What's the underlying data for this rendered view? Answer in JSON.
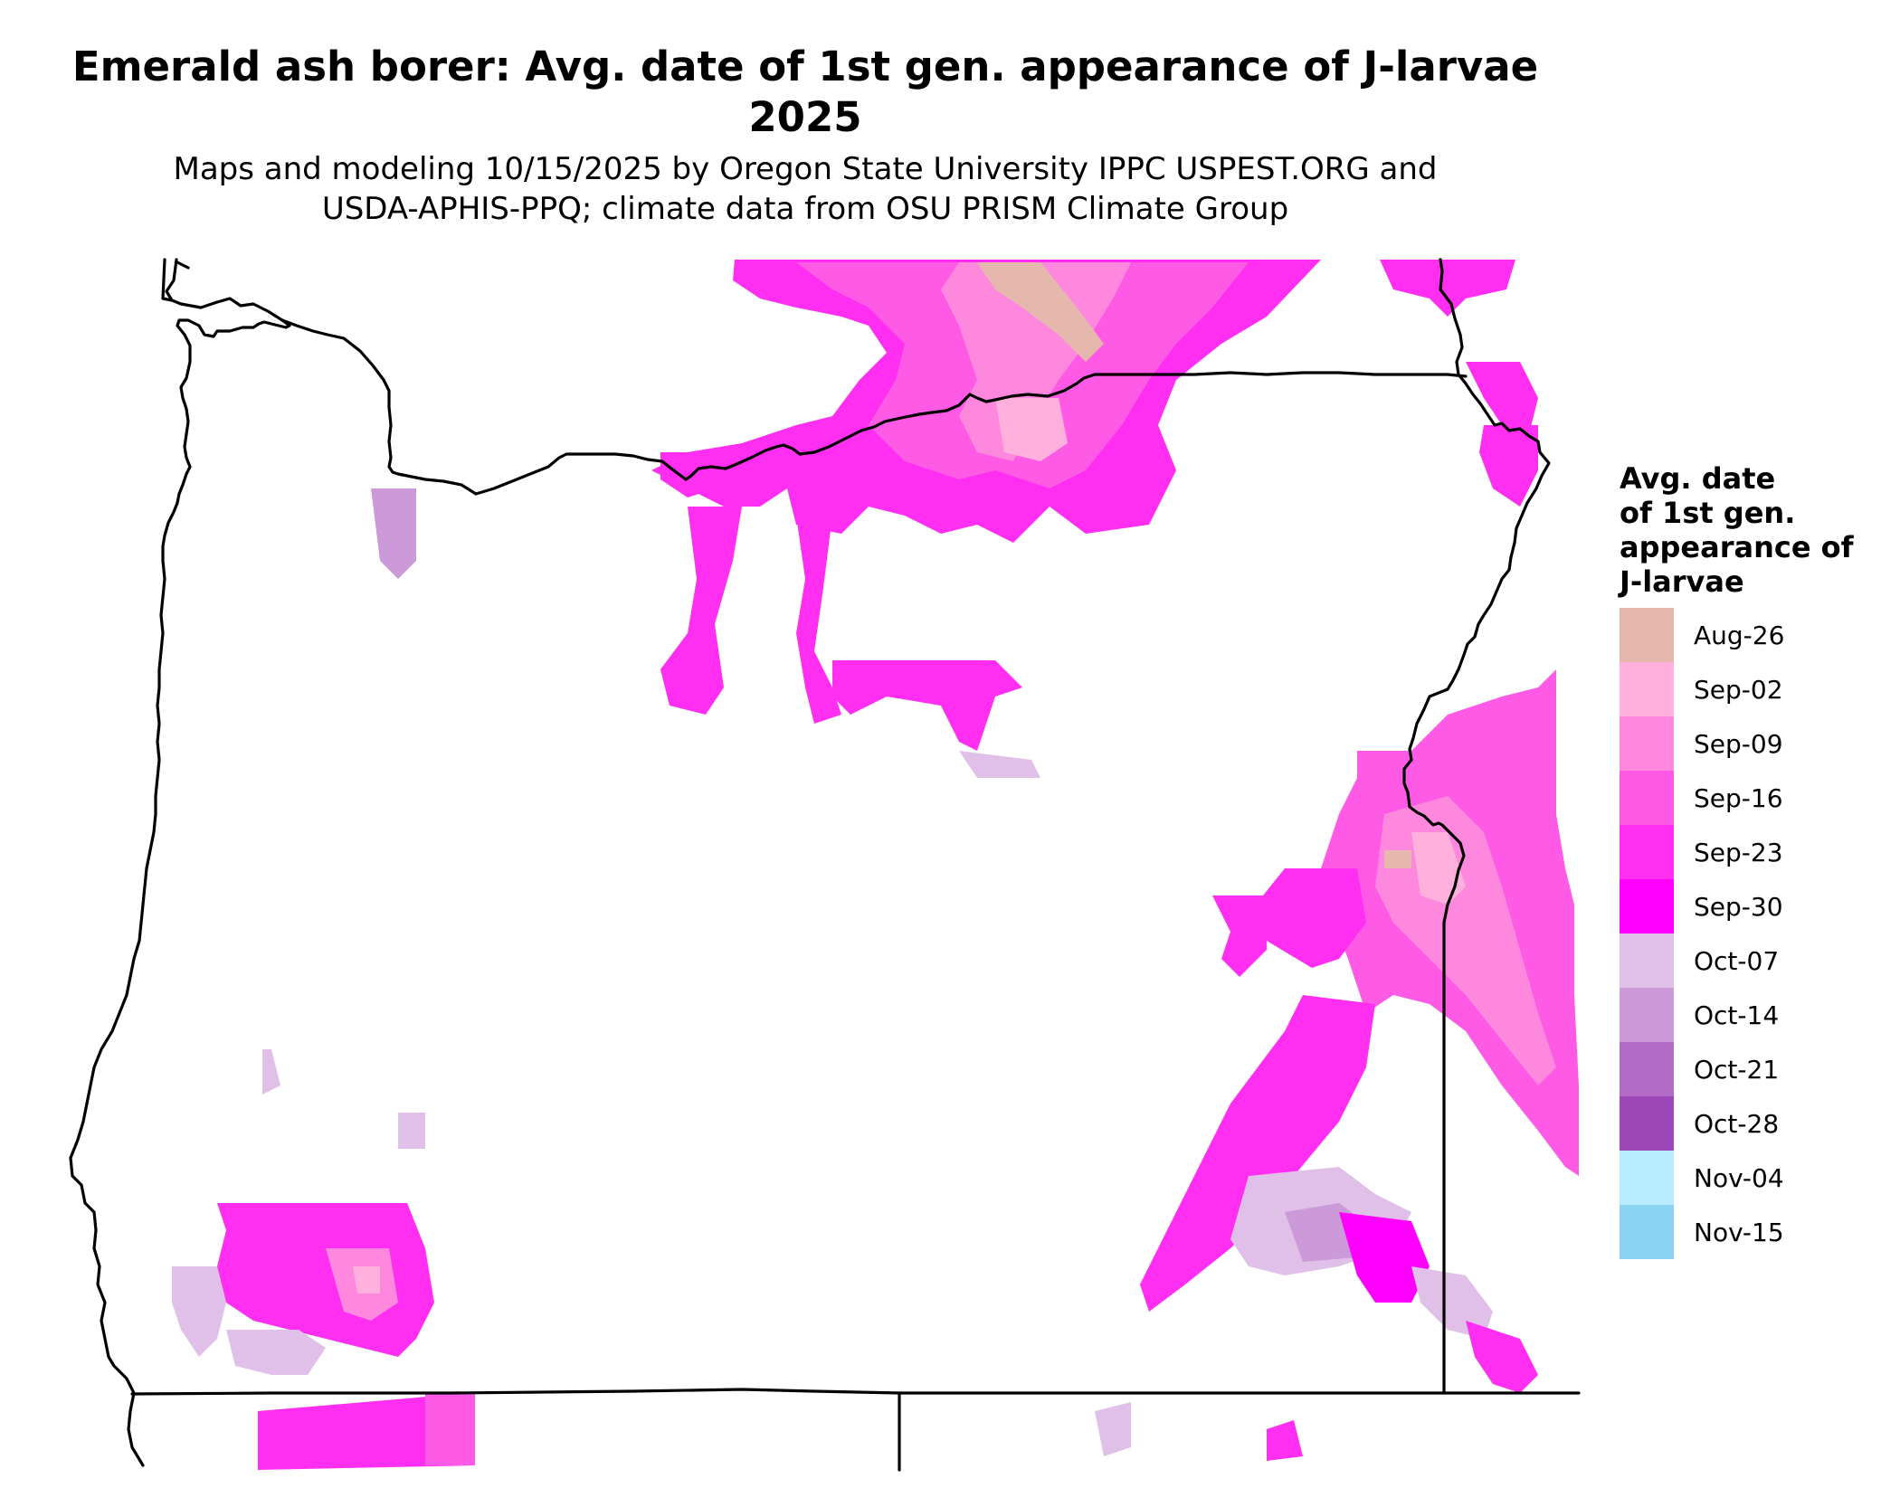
{
  "title": {
    "line1": "Emerald ash borer: Avg. date of 1st gen. appearance of J-larvae",
    "line2": "2025"
  },
  "subtitle": {
    "line1": "Maps and modeling 10/15/2025 by Oregon State University IPPC USPEST.ORG and",
    "line2": "USDA-APHIS-PPQ; climate data from OSU PRISM Climate Group"
  },
  "legend": {
    "title_lines": [
      "Avg. date",
      "of 1st gen.",
      "appearance of",
      "J-larvae"
    ],
    "items": [
      {
        "label": "Aug-26",
        "color": "#e6b8ad"
      },
      {
        "label": "Sep-02",
        "color": "#ffb0dc"
      },
      {
        "label": "Sep-09",
        "color": "#ff88df"
      },
      {
        "label": "Sep-16",
        "color": "#ff5ae6"
      },
      {
        "label": "Sep-23",
        "color": "#ff2ef0"
      },
      {
        "label": "Sep-30",
        "color": "#ff00ff"
      },
      {
        "label": "Oct-07",
        "color": "#e0c0e8"
      },
      {
        "label": "Oct-14",
        "color": "#cc9ad8"
      },
      {
        "label": "Oct-21",
        "color": "#b36cc6"
      },
      {
        "label": "Oct-28",
        "color": "#9d46b8"
      },
      {
        "label": "Nov-04",
        "color": "#b8ecff"
      },
      {
        "label": "Nov-15",
        "color": "#88d4f2"
      }
    ]
  },
  "map": {
    "region": "Oregon and adjacent border areas",
    "boundary_color": "#000000"
  }
}
